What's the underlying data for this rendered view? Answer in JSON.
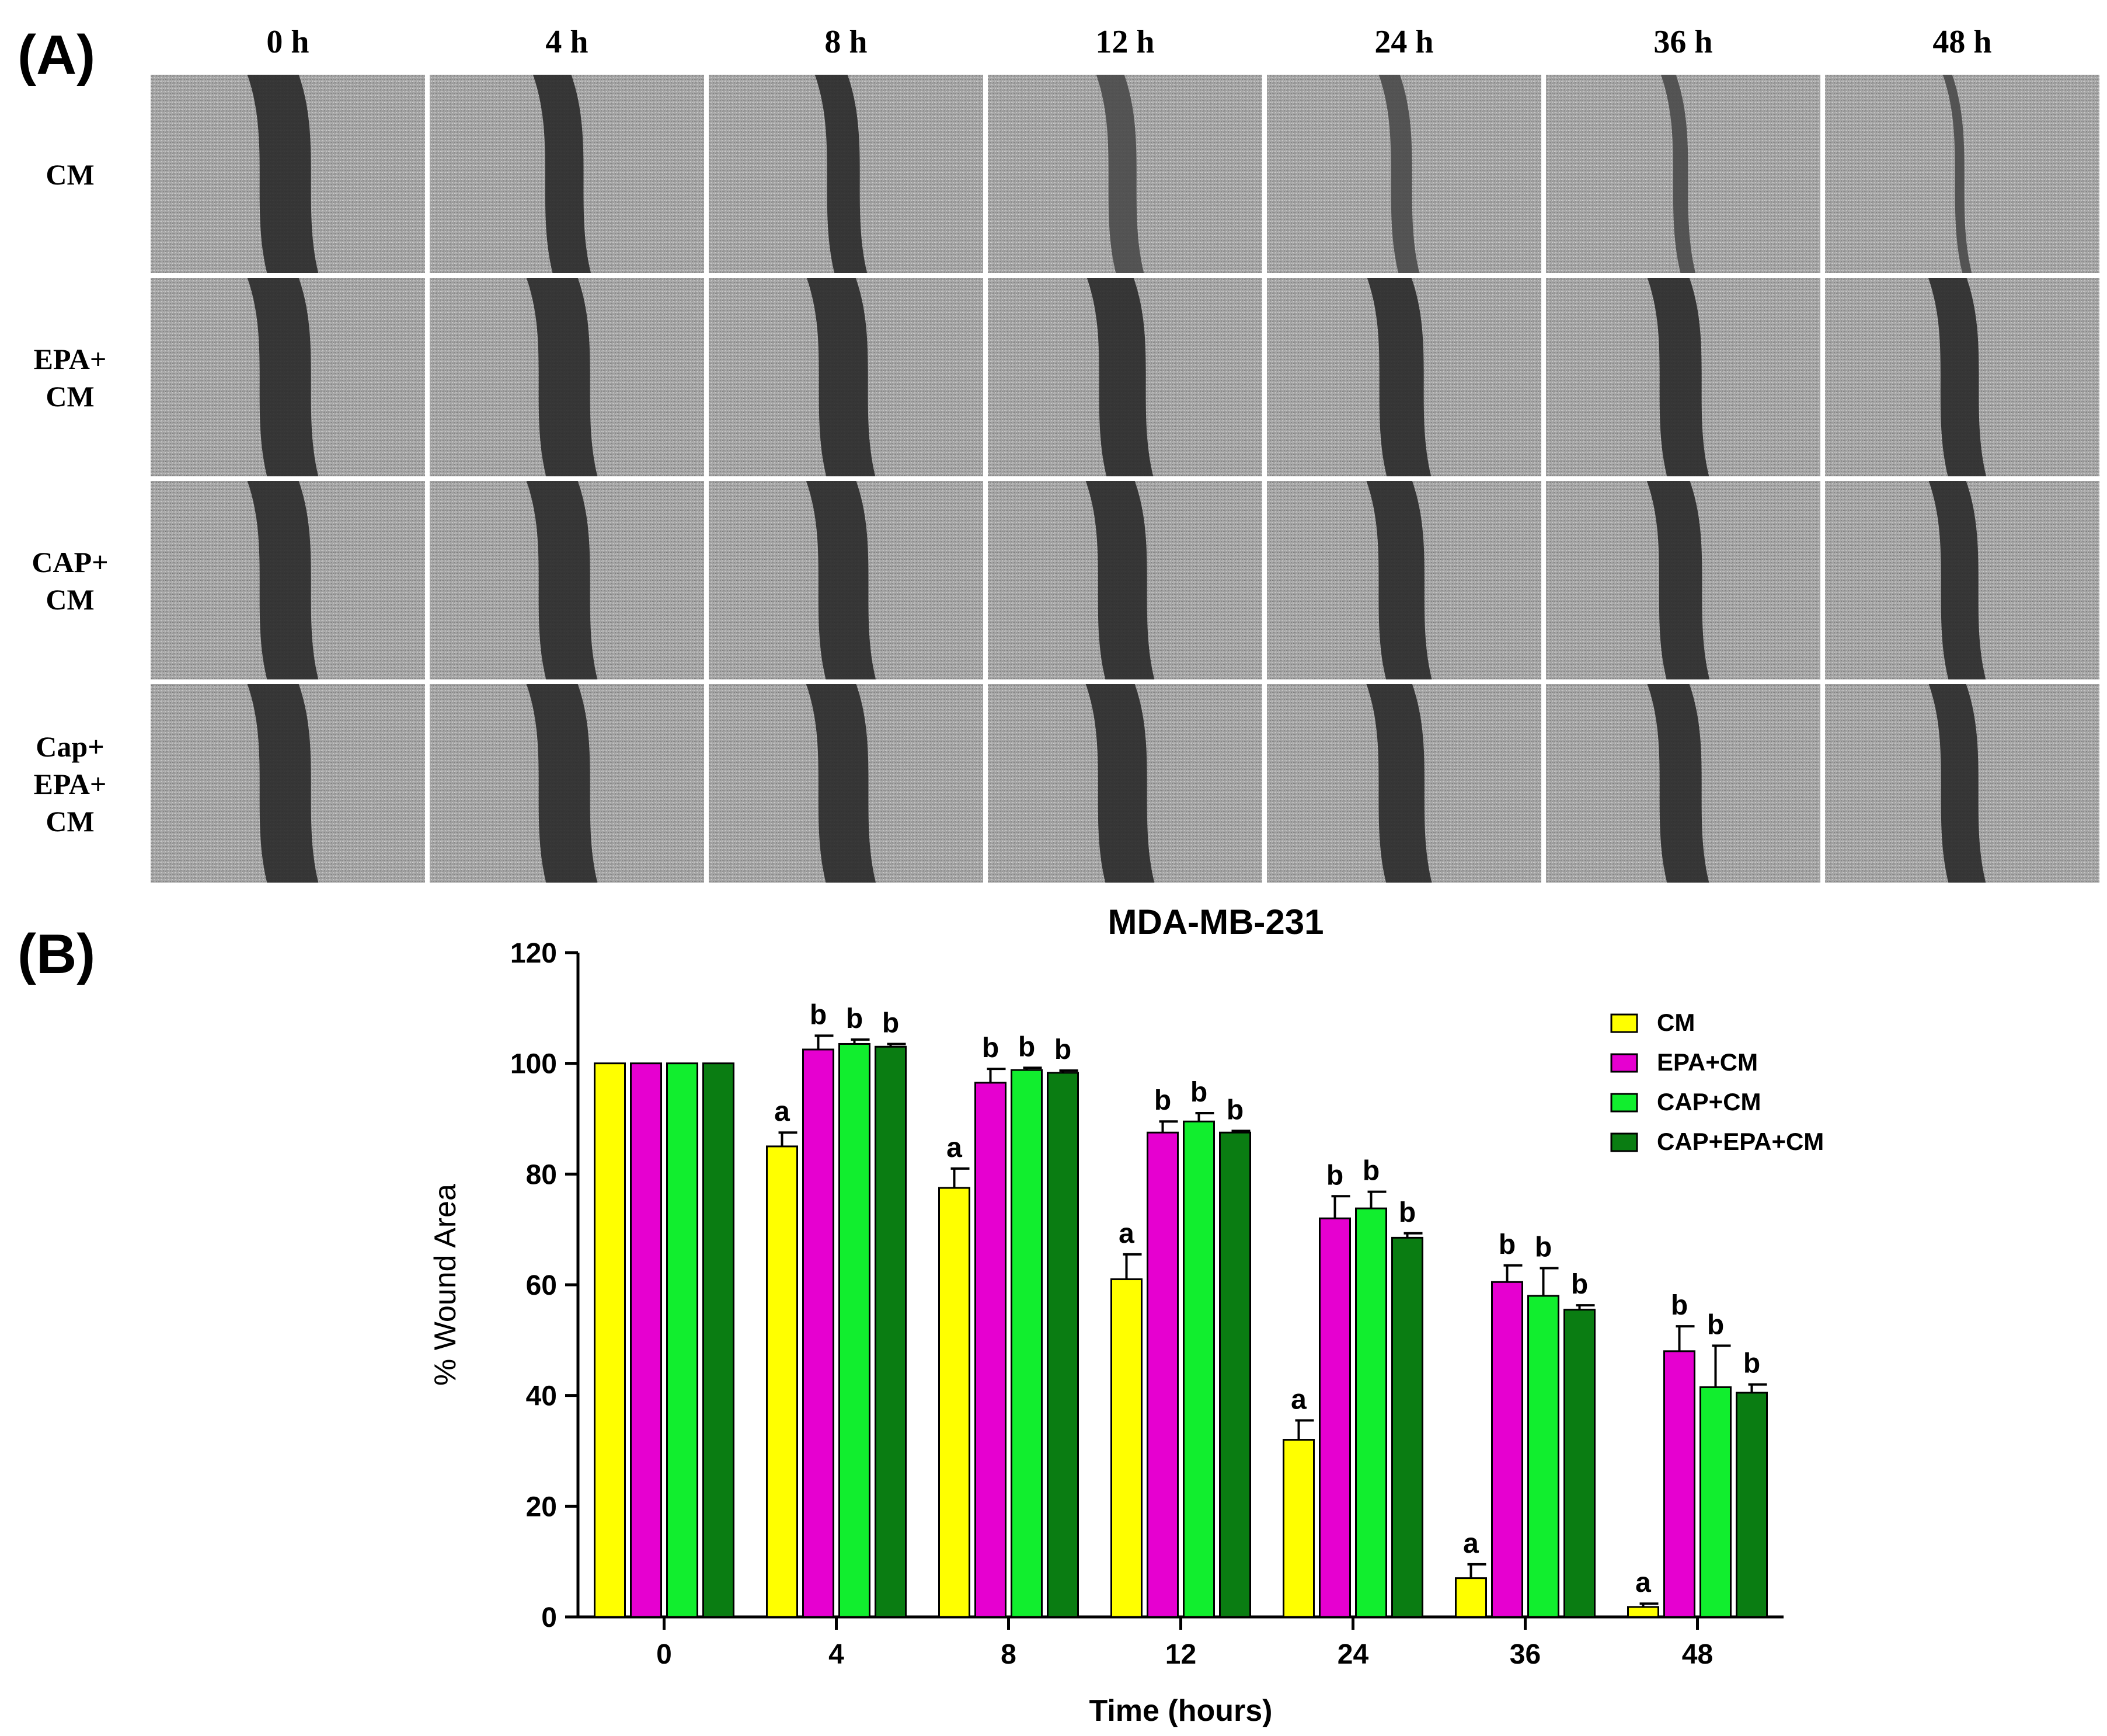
{
  "panel_a": {
    "label": "(A)",
    "time_labels": [
      "0 h",
      "4 h",
      "8 h",
      "12 h",
      "24 h",
      "36 h",
      "48 h"
    ],
    "row_labels": [
      [
        "CM"
      ],
      [
        "EPA+",
        "CM"
      ],
      [
        "CAP+",
        "CM"
      ],
      [
        "Cap+",
        "EPA+",
        "CM"
      ]
    ],
    "gap_widths_relative": [
      [
        1.0,
        0.72,
        0.6,
        0.5,
        0.35,
        0.22,
        0.1
      ],
      [
        1.0,
        1.0,
        0.95,
        0.9,
        0.85,
        0.8,
        0.72
      ],
      [
        1.0,
        1.0,
        0.97,
        0.95,
        0.88,
        0.82,
        0.7
      ],
      [
        1.0,
        1.0,
        0.97,
        0.95,
        0.88,
        0.8,
        0.7
      ]
    ]
  },
  "panel_b": {
    "label": "(B)"
  },
  "chart_data": {
    "type": "bar",
    "title": "MDA-MB-231",
    "xlabel": "Time (hours)",
    "ylabel": "% Wound Area",
    "ylim": [
      0,
      120
    ],
    "yticks": [
      0,
      20,
      40,
      60,
      80,
      100,
      120
    ],
    "categories": [
      "0",
      "4",
      "8",
      "12",
      "24",
      "36",
      "48"
    ],
    "legend_position": "top-right",
    "series": [
      {
        "name": "CM",
        "color": "#ffff00",
        "values": [
          100,
          85,
          77.5,
          61,
          32,
          7,
          1.8
        ],
        "errors": [
          0,
          2.5,
          3.5,
          4.5,
          3.5,
          2.5,
          0.6
        ],
        "labels": [
          "",
          "a",
          "a",
          "a",
          "a",
          "a",
          "a"
        ]
      },
      {
        "name": "EPA+CM",
        "color": "#e600d0",
        "values": [
          100,
          102.5,
          96.5,
          87.5,
          72,
          60.5,
          48
        ],
        "errors": [
          0,
          2.5,
          2.5,
          2,
          4,
          3,
          4.5
        ],
        "labels": [
          "",
          "b",
          "b",
          "b",
          "b",
          "b",
          "b"
        ]
      },
      {
        "name": "CAP+CM",
        "color": "#11ee2e",
        "values": [
          100,
          103.5,
          98.8,
          89.5,
          73.8,
          58,
          41.5
        ],
        "errors": [
          0,
          0.8,
          0.4,
          1.5,
          3,
          5,
          7.5
        ],
        "labels": [
          "",
          "b",
          "b",
          "b",
          "b",
          "b",
          "b"
        ]
      },
      {
        "name": "CAP+EPA+CM",
        "color": "#0a7d12",
        "values": [
          100,
          103,
          98.3,
          87.5,
          68.5,
          55.5,
          40.5
        ],
        "errors": [
          0,
          0.5,
          0.4,
          0.3,
          0.8,
          0.8,
          1.5
        ],
        "labels": [
          "",
          "b",
          "b",
          "b",
          "b",
          "b",
          "b"
        ]
      }
    ]
  }
}
